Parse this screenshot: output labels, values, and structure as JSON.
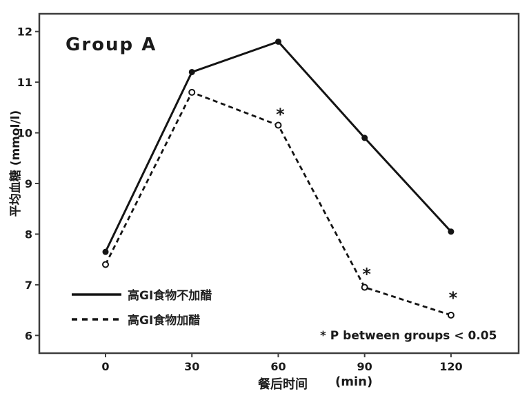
{
  "title": "Group A",
  "axes": {
    "ylabel": "平均血糖  (mmol/l)",
    "xlabel_zh": "餐后时间",
    "xlabel_unit": "(min)",
    "y_ticks": [
      12,
      11,
      10,
      9,
      8,
      7,
      6
    ],
    "x_ticks": [
      0,
      30,
      60,
      90,
      120
    ]
  },
  "legend": {
    "items": [
      {
        "label": "高GI食物不加醋",
        "style": "solid"
      },
      {
        "label": "高GI食物加醋",
        "style": "dashed"
      }
    ]
  },
  "annotation": "* P between groups < 0.05",
  "colors": {
    "line": "#141414",
    "frame": "#3d3d3d",
    "text": "#1a1a1a",
    "background": "#ffffff"
  },
  "chart_data": {
    "type": "line",
    "title": "Group A",
    "x": [
      0,
      30,
      60,
      90,
      120
    ],
    "series": [
      {
        "name": "高GI食物不加醋",
        "style": "solid",
        "marker": "filled-circle",
        "values": [
          7.65,
          11.2,
          11.8,
          9.9,
          8.05
        ]
      },
      {
        "name": "高GI食物加醋",
        "style": "dashed",
        "marker": "open-circle",
        "values": [
          7.4,
          10.8,
          10.15,
          6.95,
          6.4
        ]
      }
    ],
    "significance_markers": [
      {
        "x": 60,
        "y": 10.4
      },
      {
        "x": 90,
        "y": 7.25
      },
      {
        "x": 120,
        "y": 6.78
      }
    ],
    "xlabel": "餐后时间 (min)",
    "ylabel": "平均血糖 (mmol/l)",
    "xlim": [
      -23,
      143.5
    ],
    "ylim": [
      5.65,
      12.35
    ],
    "x_ticks": [
      0,
      30,
      60,
      90,
      120
    ],
    "y_ticks": [
      6,
      7,
      8,
      9,
      10,
      11,
      12
    ],
    "grid": false,
    "legend_position": "lower-left-inside",
    "annotation": "* P between groups < 0.05"
  }
}
